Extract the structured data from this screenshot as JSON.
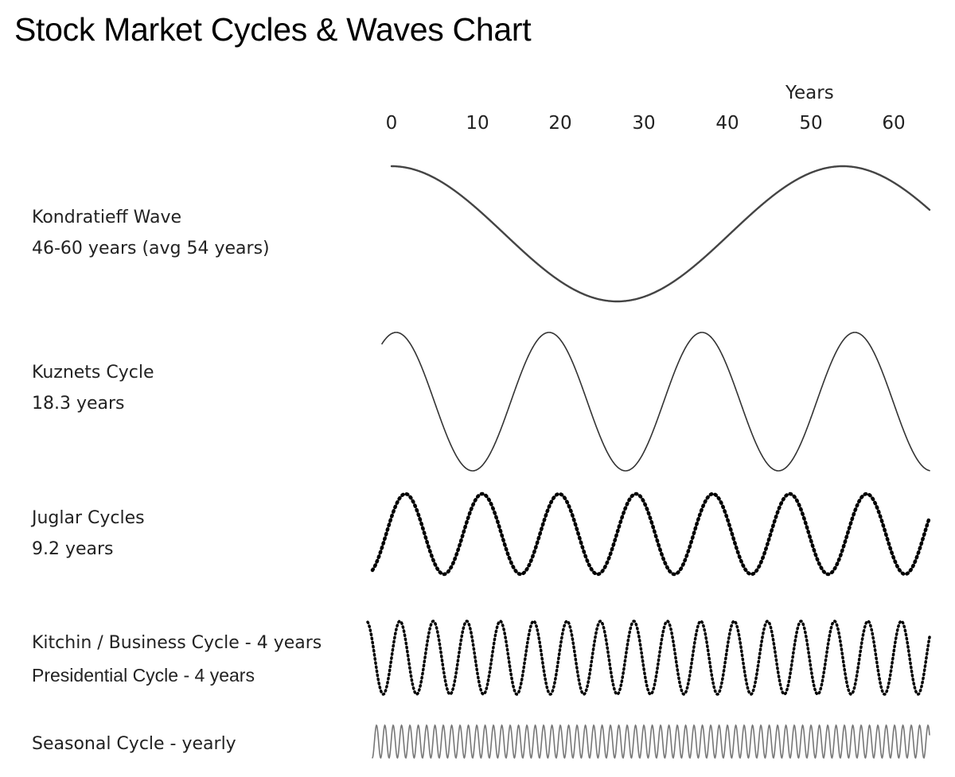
{
  "title": "Stock Market Cycles & Waves Chart",
  "axis": {
    "title": "Years",
    "ticks": [
      "0",
      "10",
      "20",
      "30",
      "40",
      "50",
      "60"
    ]
  },
  "cycles": [
    {
      "name": "Kondratieff Wave",
      "detail": "46-60 years (avg 54 years)",
      "period_years": 54,
      "style": "solid",
      "color": "#444444"
    },
    {
      "name": "Kuznets Cycle",
      "detail": "18.3 years",
      "period_years": 18.3,
      "style": "thin",
      "color": "#333333"
    },
    {
      "name": "Juglar Cycles",
      "detail": "9.2 years",
      "period_years": 9.2,
      "style": "dotted",
      "color": "#000000"
    },
    {
      "name": "Kitchin / Business Cycle - 4 years",
      "detail": "Presidential Cycle - 4 years",
      "period_years": 4,
      "style": "dotted-fine",
      "color": "#000000"
    },
    {
      "name": "Seasonal Cycle - yearly",
      "detail": "",
      "period_years": 1,
      "style": "thin-gray",
      "color": "#777777"
    }
  ]
}
